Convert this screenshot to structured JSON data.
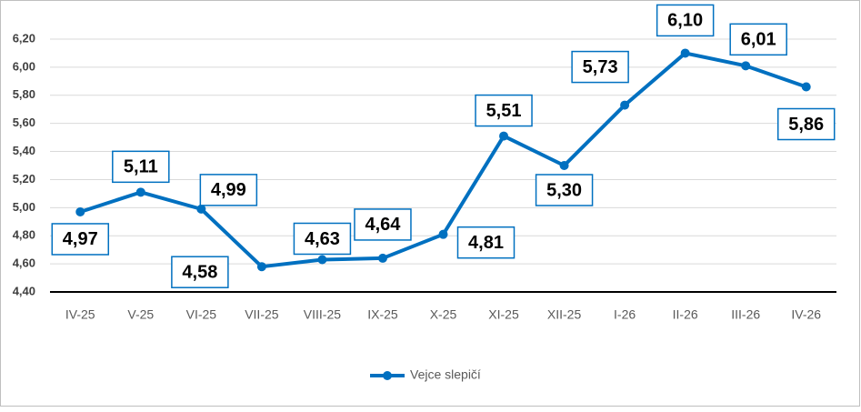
{
  "chart_data": {
    "type": "line",
    "categories": [
      "IV-25",
      "V-25",
      "VI-25",
      "VII-25",
      "VIII-25",
      "IX-25",
      "X-25",
      "XI-25",
      "XII-25",
      "I-26",
      "II-26",
      "III-26",
      "IV-26"
    ],
    "series": [
      {
        "name": "Vejce slepičí",
        "color": "#0070c0",
        "values": [
          4.97,
          5.11,
          4.99,
          4.58,
          4.63,
          4.64,
          4.81,
          5.51,
          5.3,
          5.73,
          6.1,
          6.01,
          5.86
        ],
        "value_labels": [
          "4,97",
          "5,11",
          "4,99",
          "4,58",
          "4,63",
          "4,64",
          "4,81",
          "5,51",
          "5,30",
          "5,73",
          "6,10",
          "6,01",
          "5,86"
        ]
      }
    ],
    "ylim": [
      4.4,
      6.2
    ],
    "yticks": [
      {
        "value": 4.4,
        "label": "4,40"
      },
      {
        "value": 4.6,
        "label": "4,60"
      },
      {
        "value": 4.8,
        "label": "4,80"
      },
      {
        "value": 5.0,
        "label": "5,00"
      },
      {
        "value": 5.2,
        "label": "5,20"
      },
      {
        "value": 5.4,
        "label": "5,40"
      },
      {
        "value": 5.6,
        "label": "5,60"
      },
      {
        "value": 5.8,
        "label": "5,80"
      },
      {
        "value": 6.0,
        "label": "6,00"
      },
      {
        "value": 6.2,
        "label": "6,20"
      }
    ],
    "grid": true,
    "legend": "bottom"
  }
}
